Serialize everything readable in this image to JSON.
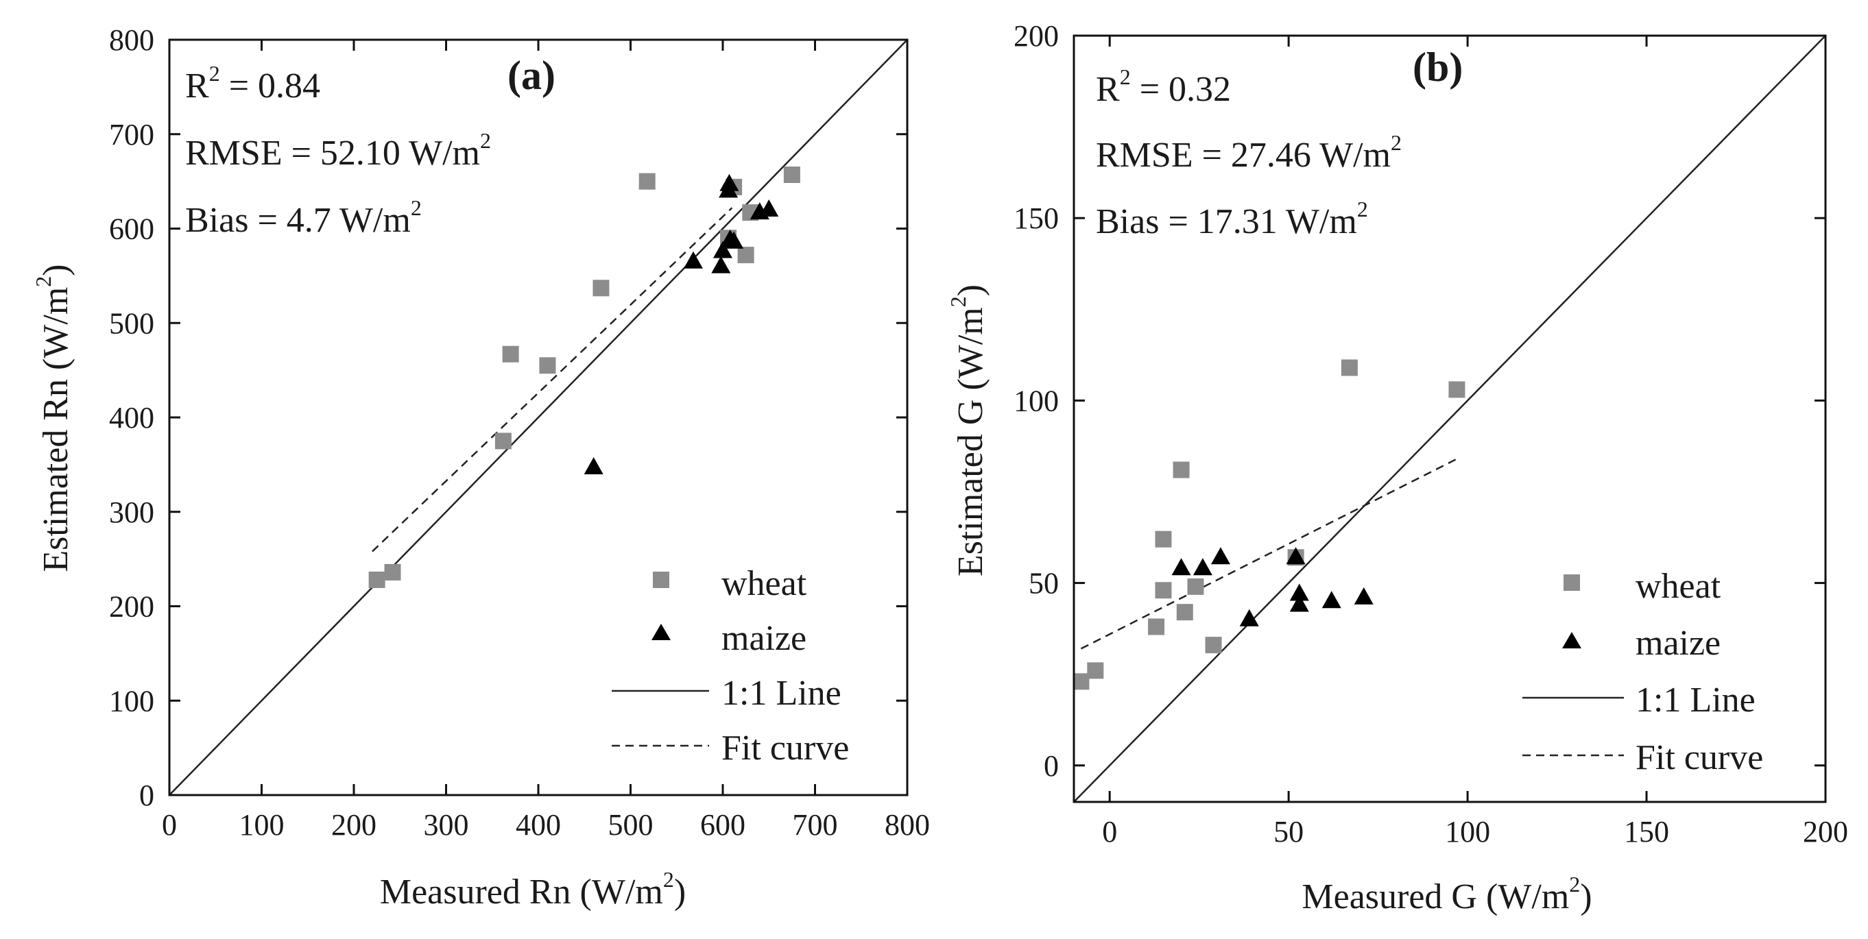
{
  "chart_data": [
    {
      "type": "scatter",
      "panel_label": "(a)",
      "xlabel": {
        "main": "Measured Rn (W/m",
        "sup": "2",
        "end": ")"
      },
      "ylabel": {
        "main": "Estimated Rn (W/m",
        "sup": "2",
        "end": ")"
      },
      "xlim": [
        0,
        800
      ],
      "ylim": [
        0,
        800
      ],
      "xticks": [
        0,
        100,
        200,
        300,
        400,
        500,
        600,
        700,
        800
      ],
      "yticks": [
        0,
        100,
        200,
        300,
        400,
        500,
        600,
        700,
        800
      ],
      "stats": {
        "r2": {
          "label": "R",
          "sup": "2",
          "value": " = 0.84"
        },
        "rmse": {
          "label": "RMSE = 52.10 W/m",
          "sup": "2"
        },
        "bias": {
          "label": "Bias = 4.7 W/m",
          "sup": "2"
        }
      },
      "legend": {
        "wheat": "wheat",
        "maize": "maize",
        "one_to_one": "1:1 Line",
        "fit": "Fit curve"
      },
      "legend_position": "bottom-right",
      "series": [
        {
          "name": "wheat",
          "marker": "square",
          "color": "#8c8c8c",
          "points": [
            [
              225,
              228
            ],
            [
              242,
              236
            ],
            [
              362,
              375
            ],
            [
              370,
              467
            ],
            [
              410,
              455
            ],
            [
              468,
              537
            ],
            [
              518,
              650
            ],
            [
              606,
              590
            ],
            [
              612,
              644
            ],
            [
              625,
              572
            ],
            [
              630,
              617
            ],
            [
              675,
              657
            ]
          ]
        },
        {
          "name": "maize",
          "marker": "triangle",
          "color": "#000000",
          "points": [
            [
              460,
              347
            ],
            [
              568,
              565
            ],
            [
              598,
              560
            ],
            [
              600,
              576
            ],
            [
              606,
              640
            ],
            [
              607,
              647
            ],
            [
              608,
              588
            ],
            [
              612,
              586
            ],
            [
              640,
              617
            ],
            [
              650,
              620
            ]
          ]
        }
      ],
      "one_to_one": {
        "x": [
          0,
          800
        ],
        "y": [
          0,
          800
        ]
      },
      "fit_curve": {
        "x": [
          220,
          610
        ],
        "y": [
          258,
          622
        ]
      }
    },
    {
      "type": "scatter",
      "panel_label": "(b)",
      "xlabel": {
        "main": "Measured G (W/m",
        "sup": "2",
        "end": ")"
      },
      "ylabel": {
        "main": "Estimated G (W/m",
        "sup": "2",
        "end": ")"
      },
      "xlim": [
        -10,
        200
      ],
      "ylim": [
        -10,
        200
      ],
      "xticks": [
        0,
        50,
        100,
        150,
        200
      ],
      "yticks": [
        0,
        50,
        100,
        150,
        200
      ],
      "stats": {
        "r2": {
          "label": "R",
          "sup": "2",
          "value": " = 0.32"
        },
        "rmse": {
          "label": "RMSE = 27.46 W/m",
          "sup": "2"
        },
        "bias": {
          "label": "Bias = 17.31 W/m",
          "sup": "2"
        }
      },
      "legend": {
        "wheat": "wheat",
        "maize": "maize",
        "one_to_one": "1:1 Line",
        "fit": "Fit curve"
      },
      "legend_position": "bottom-right",
      "series": [
        {
          "name": "wheat",
          "marker": "square",
          "color": "#8c8c8c",
          "points": [
            [
              -8,
              23
            ],
            [
              -4,
              26
            ],
            [
              13,
              38
            ],
            [
              15,
              62
            ],
            [
              15,
              48
            ],
            [
              20,
              81
            ],
            [
              21,
              42
            ],
            [
              24,
              49
            ],
            [
              29,
              33
            ],
            [
              52,
              57
            ],
            [
              67,
              109
            ],
            [
              97,
              103
            ]
          ]
        },
        {
          "name": "maize",
          "marker": "triangle",
          "color": "#000000",
          "points": [
            [
              20,
              54
            ],
            [
              26,
              54
            ],
            [
              31,
              57
            ],
            [
              39,
              40
            ],
            [
              52,
              57
            ],
            [
              53,
              47
            ],
            [
              53,
              44
            ],
            [
              62,
              45
            ],
            [
              71,
              46
            ]
          ]
        }
      ],
      "one_to_one": {
        "x": [
          -10,
          200
        ],
        "y": [
          -10,
          200
        ]
      },
      "fit_curve": {
        "x": [
          -8,
          97
        ],
        "y": [
          32,
          84
        ]
      }
    }
  ]
}
